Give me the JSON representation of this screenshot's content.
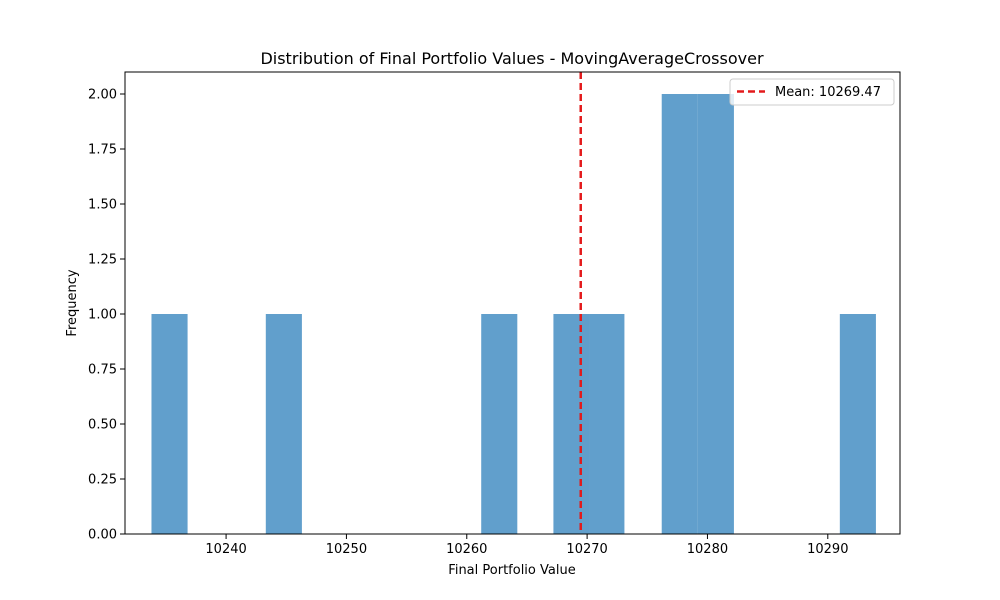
{
  "chart_data": {
    "type": "bar",
    "title": "Distribution of Final Portfolio Values - MovingAverageCrossover",
    "xlabel": "Final Portfolio Value",
    "ylabel": "Frequency",
    "xlim": [
      10231.6,
      10296.0
    ],
    "ylim": [
      0,
      2.1
    ],
    "x_ticks": [
      10240,
      10250,
      10260,
      10270,
      10280,
      10290
    ],
    "y_ticks": [
      0.0,
      0.25,
      0.5,
      0.75,
      1.0,
      1.25,
      1.5,
      1.75,
      2.0
    ],
    "x_tick_labels": [
      "10240",
      "10250",
      "10260",
      "10270",
      "10280",
      "10290"
    ],
    "y_tick_labels": [
      "0.00",
      "0.25",
      "0.50",
      "0.75",
      "1.00",
      "1.25",
      "1.50",
      "1.75",
      "2.00"
    ],
    "bins": [
      {
        "x0": 10233.8,
        "x1": 10236.8,
        "value": 1
      },
      {
        "x0": 10243.3,
        "x1": 10246.3,
        "value": 1
      },
      {
        "x0": 10261.2,
        "x1": 10264.2,
        "value": 1
      },
      {
        "x0": 10267.2,
        "x1": 10270.2,
        "value": 1
      },
      {
        "x0": 10270.2,
        "x1": 10273.1,
        "value": 1
      },
      {
        "x0": 10276.2,
        "x1": 10279.2,
        "value": 2
      },
      {
        "x0": 10279.2,
        "x1": 10282.2,
        "value": 2
      },
      {
        "x0": 10291.0,
        "x1": 10294.0,
        "value": 1
      }
    ],
    "bar_color": "#3a87bf",
    "bar_opacity": 0.8,
    "mean": {
      "value": 10269.47,
      "label": "Mean: 10269.47",
      "color": "#e31a1c",
      "style": "dashed"
    },
    "legend_position": "top-right",
    "grid": false
  }
}
